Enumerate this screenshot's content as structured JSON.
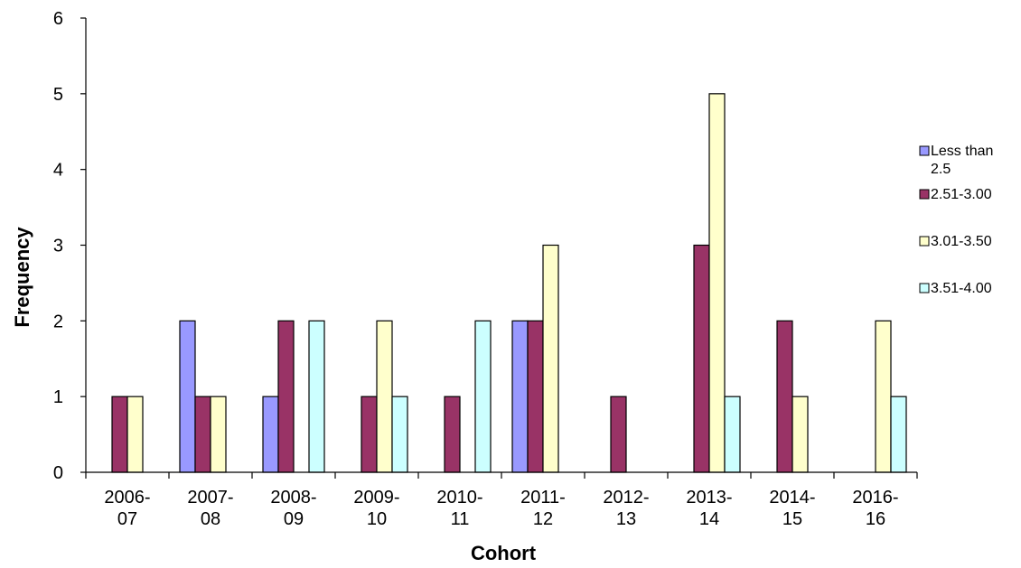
{
  "chart_data": {
    "type": "bar",
    "title": "",
    "xlabel": "Cohort",
    "ylabel": "Frequency",
    "ylim": [
      0,
      6
    ],
    "yticks": [
      "0",
      "1",
      "2",
      "3",
      "4",
      "5",
      "6"
    ],
    "grid": false,
    "legend_position": "right",
    "categories": [
      [
        "2006-",
        "07"
      ],
      [
        "2007-",
        "08"
      ],
      [
        "2008-",
        "09"
      ],
      [
        "2009-",
        "10"
      ],
      [
        "2010-",
        "11"
      ],
      [
        "2011-",
        "12"
      ],
      [
        "2012-",
        "13"
      ],
      [
        "2013-",
        "14"
      ],
      [
        "2014-",
        "15"
      ],
      [
        "2016-",
        "16"
      ]
    ],
    "series": [
      {
        "name": [
          "Less than",
          "2.5"
        ],
        "color": "#9999FF",
        "values": [
          0,
          2,
          1,
          0,
          0,
          2,
          0,
          0,
          0,
          0
        ]
      },
      {
        "name": [
          "2.51-3.00"
        ],
        "color": "#993366",
        "values": [
          1,
          1,
          2,
          1,
          1,
          2,
          1,
          3,
          2,
          0
        ]
      },
      {
        "name": [
          "3.01-3.50"
        ],
        "color": "#FFFFCC",
        "values": [
          1,
          1,
          0,
          2,
          0,
          3,
          0,
          5,
          1,
          2
        ]
      },
      {
        "name": [
          "3.51-4.00"
        ],
        "color": "#CCFFFF",
        "values": [
          0,
          0,
          2,
          1,
          2,
          0,
          0,
          1,
          0,
          1
        ]
      }
    ]
  }
}
